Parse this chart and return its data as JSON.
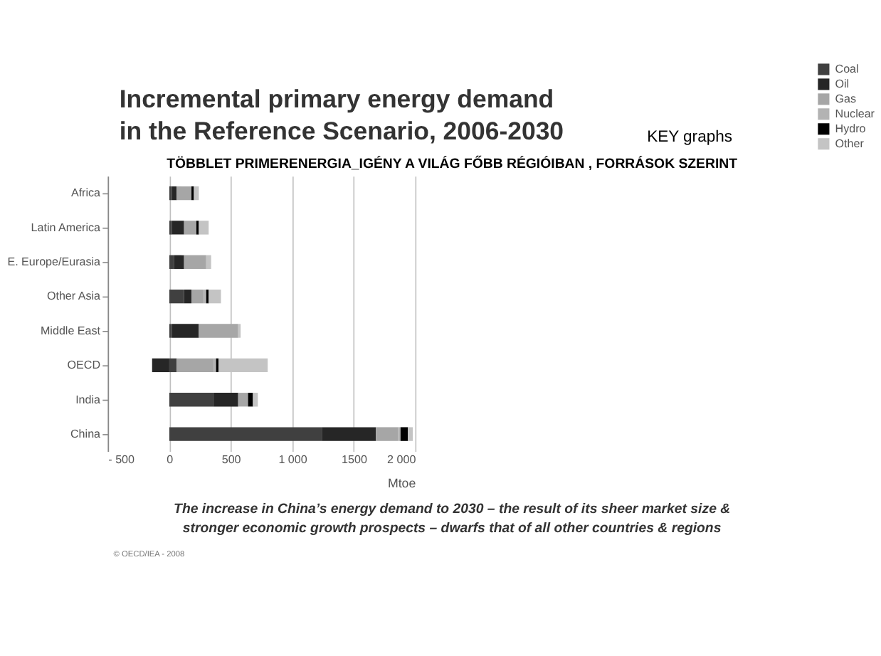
{
  "chart_data": {
    "type": "bar",
    "orientation": "horizontal",
    "stacked": true,
    "title": "Incremental primary energy demand\nin the Reference Scenario, 2006-2030",
    "subtitle": "TÖBBLET  PRIMERENERGIA_IGÉNY A VILÁG  FŐBB RÉGIÓIBAN , FORRÁSOK SZERINT",
    "xlabel": "Mtoe",
    "categories": [
      "Africa",
      "Latin America",
      "E. Europe/Eurasia",
      "Other Asia",
      "Middle East",
      "OECD",
      "India",
      "China"
    ],
    "series": [
      {
        "name": "Coal",
        "color": "#404040",
        "values": [
          20,
          20,
          40,
          120,
          20,
          60,
          360,
          1240
        ]
      },
      {
        "name": "Oil",
        "color": "#262626",
        "values": [
          40,
          100,
          80,
          60,
          220,
          -140,
          200,
          440
        ]
      },
      {
        "name": "Gas",
        "color": "#a6a6a6",
        "values": [
          120,
          100,
          180,
          100,
          320,
          300,
          80,
          180
        ]
      },
      {
        "name": "Nuclear",
        "color": "#b3b3b3",
        "values": [
          null,
          null,
          null,
          20,
          null,
          20,
          null,
          20
        ]
      },
      {
        "name": "Hydro",
        "color": "#000000",
        "values": [
          20,
          20,
          null,
          20,
          null,
          20,
          40,
          60
        ]
      },
      {
        "name": "Other",
        "color": "#c4c4c4",
        "values": [
          40,
          80,
          40,
          100,
          20,
          400,
          40,
          40
        ]
      }
    ],
    "xlim": [
      -500,
      2000
    ],
    "xticks": [
      {
        "value": -500,
        "label": "- 500"
      },
      0,
      500,
      {
        "value": 1000,
        "label": "1 000"
      },
      1500,
      {
        "value": 2000,
        "label": "2 000"
      }
    ],
    "grid": "x",
    "legend": "top right",
    "annotations": [
      "KEY graphs",
      "The increase in China’s energy demand to 2030 – the result of its sheer market size &\nstronger economic growth prospects – dwarfs that of all other countries & regions",
      "© OECD/IEA - 2008"
    ]
  }
}
